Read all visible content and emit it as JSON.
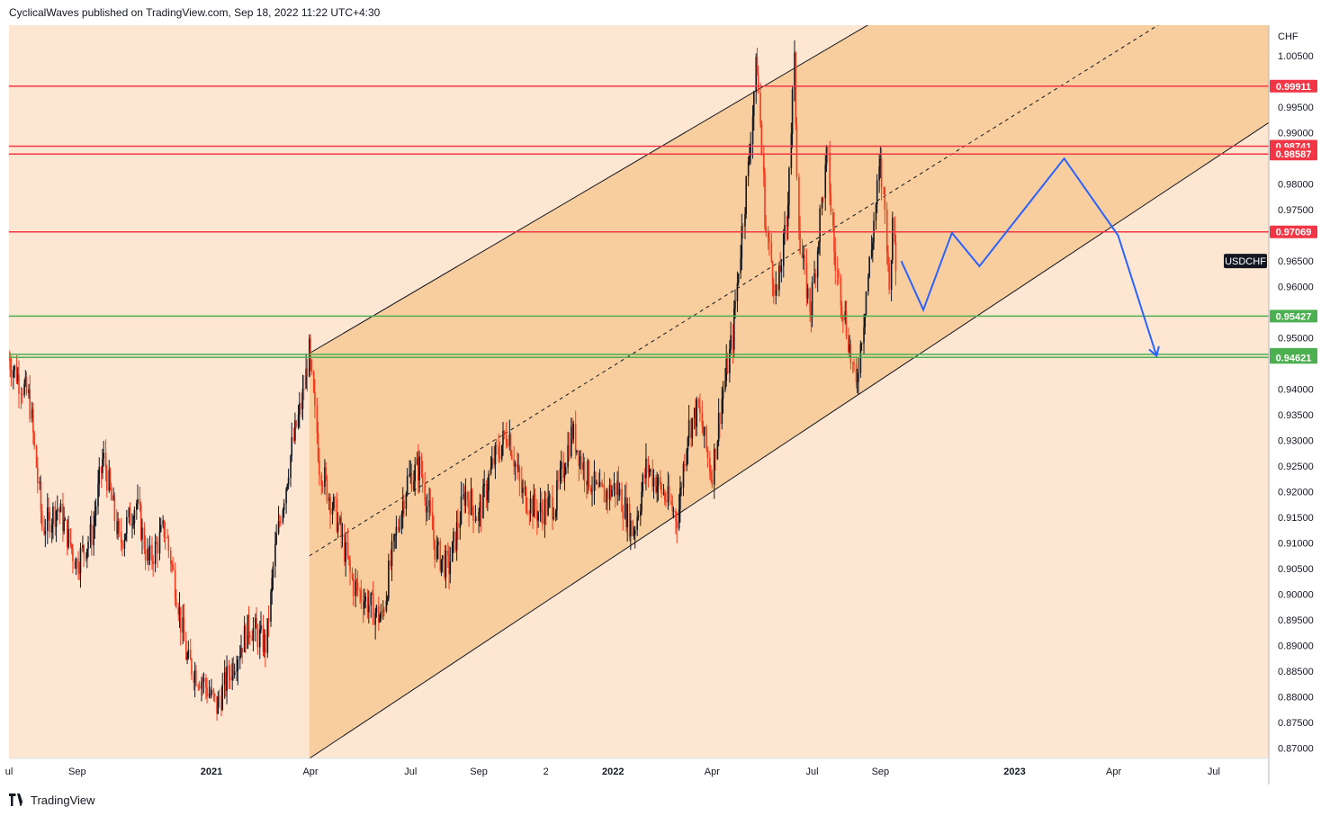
{
  "header": {
    "published_text": "CyclicalWaves published on TradingView.com, Sep 18, 2022 11:22 UTC+4:30"
  },
  "footer": {
    "brand": "TradingView"
  },
  "colors": {
    "background_inside": "#fbdcbd",
    "background_light": "#fde7d3",
    "channel_fill": "#f9ce9f",
    "candle_up": "#131722",
    "candle_down": "#f23b1f",
    "resistance_line": "#f23645",
    "support_line": "#4caf50",
    "projection": "#2962ff",
    "channel_line": "#131722"
  },
  "chart_data": {
    "type": "candlestick",
    "symbol": "USDCHF",
    "currency": "CHF",
    "y_axis": {
      "range": [
        0.868,
        1.011
      ],
      "ticks": [
        "1.00500",
        "0.99500",
        "0.99000",
        "0.98000",
        "0.97500",
        "0.96500",
        "0.96000",
        "0.95000",
        "0.94000",
        "0.93500",
        "0.93000",
        "0.92500",
        "0.92000",
        "0.91500",
        "0.91000",
        "0.90500",
        "0.90000",
        "0.89500",
        "0.89000",
        "0.88500",
        "0.88000",
        "0.87500",
        "0.87000"
      ],
      "tick_values": [
        1.005,
        0.995,
        0.99,
        0.98,
        0.975,
        0.965,
        0.96,
        0.95,
        0.94,
        0.935,
        0.93,
        0.925,
        0.92,
        0.915,
        0.91,
        0.905,
        0.9,
        0.895,
        0.89,
        0.885,
        0.88,
        0.875,
        0.87
      ]
    },
    "x_axis": {
      "range": [
        "2020-07-01",
        "2023-08-20"
      ],
      "ticks": [
        {
          "label": "ul",
          "date": "2020-07-01"
        },
        {
          "label": "Sep",
          "date": "2020-09-01"
        },
        {
          "label": "2021",
          "date": "2021-01-01"
        },
        {
          "label": "Apr",
          "date": "2021-04-01"
        },
        {
          "label": "Jul",
          "date": "2021-07-01"
        },
        {
          "label": "Sep",
          "date": "2021-09-01"
        },
        {
          "label": "2",
          "date": "2021-11-01"
        },
        {
          "label": "2022",
          "date": "2022-01-01"
        },
        {
          "label": "Apr",
          "date": "2022-04-01"
        },
        {
          "label": "Jul",
          "date": "2022-07-01"
        },
        {
          "label": "Sep",
          "date": "2022-09-01"
        },
        {
          "label": "2023",
          "date": "2023-01-01"
        },
        {
          "label": "Apr",
          "date": "2023-04-01"
        },
        {
          "label": "Jul",
          "date": "2023-07-01"
        }
      ]
    },
    "price_path": [
      [
        "2020-07-01",
        0.946
      ],
      [
        "2020-07-20",
        0.938
      ],
      [
        "2020-08-01",
        0.913
      ],
      [
        "2020-08-15",
        0.917
      ],
      [
        "2020-09-01",
        0.906
      ],
      [
        "2020-09-15",
        0.912
      ],
      [
        "2020-09-25",
        0.927
      ],
      [
        "2020-10-10",
        0.91
      ],
      [
        "2020-10-25",
        0.918
      ],
      [
        "2020-11-05",
        0.906
      ],
      [
        "2020-11-20",
        0.913
      ],
      [
        "2020-12-01",
        0.9
      ],
      [
        "2020-12-10",
        0.887
      ],
      [
        "2020-12-25",
        0.883
      ],
      [
        "2021-01-06",
        0.878
      ],
      [
        "2021-01-20",
        0.886
      ],
      [
        "2021-02-05",
        0.894
      ],
      [
        "2021-02-20",
        0.89
      ],
      [
        "2021-03-01",
        0.91
      ],
      [
        "2021-03-15",
        0.928
      ],
      [
        "2021-03-25",
        0.938
      ],
      [
        "2021-03-31",
        0.947
      ],
      [
        "2021-04-10",
        0.925
      ],
      [
        "2021-04-25",
        0.915
      ],
      [
        "2021-05-10",
        0.902
      ],
      [
        "2021-05-25",
        0.898
      ],
      [
        "2021-06-05",
        0.895
      ],
      [
        "2021-06-15",
        0.908
      ],
      [
        "2021-06-28",
        0.922
      ],
      [
        "2021-07-10",
        0.925
      ],
      [
        "2021-07-25",
        0.908
      ],
      [
        "2021-08-05",
        0.905
      ],
      [
        "2021-08-20",
        0.92
      ],
      [
        "2021-09-01",
        0.915
      ],
      [
        "2021-09-15",
        0.926
      ],
      [
        "2021-09-28",
        0.932
      ],
      [
        "2021-10-10",
        0.92
      ],
      [
        "2021-10-25",
        0.916
      ],
      [
        "2021-11-10",
        0.918
      ],
      [
        "2021-11-25",
        0.932
      ],
      [
        "2021-12-05",
        0.925
      ],
      [
        "2021-12-20",
        0.919
      ],
      [
        "2022-01-05",
        0.921
      ],
      [
        "2022-01-20",
        0.912
      ],
      [
        "2022-02-01",
        0.925
      ],
      [
        "2022-02-15",
        0.92
      ],
      [
        "2022-03-01",
        0.915
      ],
      [
        "2022-03-10",
        0.932
      ],
      [
        "2022-03-20",
        0.936
      ],
      [
        "2022-04-01",
        0.923
      ],
      [
        "2022-04-10",
        0.938
      ],
      [
        "2022-04-20",
        0.95
      ],
      [
        "2022-04-28",
        0.97
      ],
      [
        "2022-05-05",
        0.985
      ],
      [
        "2022-05-12",
        1.005
      ],
      [
        "2022-05-20",
        0.972
      ],
      [
        "2022-05-30",
        0.958
      ],
      [
        "2022-06-08",
        0.972
      ],
      [
        "2022-06-15",
        1.003
      ],
      [
        "2022-06-20",
        0.968
      ],
      [
        "2022-06-30",
        0.955
      ],
      [
        "2022-07-08",
        0.972
      ],
      [
        "2022-07-15",
        0.986
      ],
      [
        "2022-07-22",
        0.965
      ],
      [
        "2022-08-01",
        0.953
      ],
      [
        "2022-08-10",
        0.94
      ],
      [
        "2022-08-18",
        0.956
      ],
      [
        "2022-08-25",
        0.969
      ],
      [
        "2022-09-01",
        0.984
      ],
      [
        "2022-09-06",
        0.974
      ],
      [
        "2022-09-09",
        0.96
      ],
      [
        "2022-09-13",
        0.972
      ],
      [
        "2022-09-16",
        0.963
      ]
    ],
    "horizontal_levels": [
      {
        "label": "0.99911",
        "value": 0.99911,
        "kind": "resistance"
      },
      {
        "label": "0.98741",
        "value": 0.98741,
        "kind": "resistance"
      },
      {
        "label": "0.98587",
        "value": 0.98587,
        "kind": "resistance"
      },
      {
        "label": "0.97069",
        "value": 0.97069,
        "kind": "resistance"
      },
      {
        "label": "0.95427",
        "value": 0.95427,
        "kind": "support"
      },
      {
        "label": "0.94681",
        "value": 0.94681,
        "kind": "support"
      },
      {
        "label": "0.94621",
        "value": 0.94621,
        "kind": "support"
      }
    ],
    "current_price_label": "USDCHF",
    "current_price_value": 0.965,
    "channel": {
      "start_date": "2021-03-31",
      "end_date": "2023-08-20",
      "upper_start": 0.947,
      "upper_end": 1.057,
      "lower_start": 0.868,
      "lower_end": 0.992,
      "median_start": 0.9075,
      "median_end": 1.0245
    },
    "projection_path": [
      [
        "2022-09-20",
        0.965
      ],
      [
        "2022-10-10",
        0.9555
      ],
      [
        "2022-11-05",
        0.9705
      ],
      [
        "2022-11-30",
        0.964
      ],
      [
        "2023-02-15",
        0.985
      ],
      [
        "2023-04-05",
        0.97
      ],
      [
        "2023-05-10",
        0.9465
      ]
    ]
  }
}
